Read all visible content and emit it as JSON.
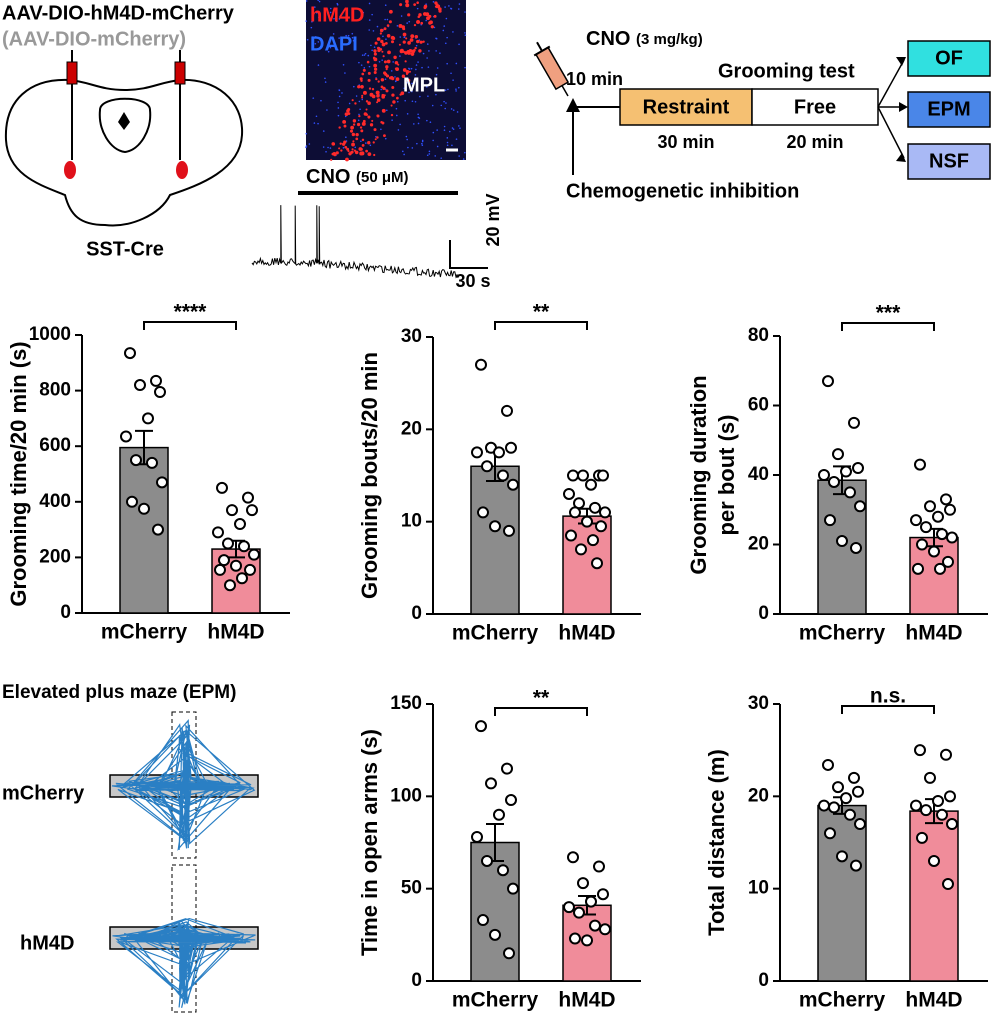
{
  "injection": {
    "virus": "AAV-DIO-hM4D-mCherry",
    "control": "(AAV-DIO-mCherry)",
    "mouse": "SST-Cre"
  },
  "image": {
    "stain1": "hM4D",
    "stain2": "DAPI",
    "region": "MPL"
  },
  "trace": {
    "drug": "CNO",
    "dose": "(50 μM)",
    "scale_y": "20 mV",
    "scale_x": "30 s"
  },
  "timeline": {
    "drug": "CNO",
    "dose": "(3 mg/kg)",
    "delay": "10 min",
    "test": "Grooming test",
    "phases": [
      {
        "label": "Restraint",
        "duration": "30 min"
      },
      {
        "label": "Free",
        "duration": "20 min"
      }
    ],
    "note": "Chemogenetic inhibition",
    "tests": [
      "OF",
      "EPM",
      "NSF"
    ]
  },
  "epm": {
    "title": "Elevated plus maze (EPM)",
    "groups": [
      "mCherry",
      "hM4D"
    ]
  },
  "chart_data": [
    {
      "type": "bar",
      "ylabel": [
        "Grooming time/20 min (s)"
      ],
      "categories": [
        "mCherry",
        "hM4D"
      ],
      "colors": [
        "#8c8c8c",
        "#f08c9a"
      ],
      "values": [
        595,
        230
      ],
      "errors": [
        60,
        30
      ],
      "ylim": [
        0,
        1000
      ],
      "yticks": [
        0,
        200,
        400,
        600,
        800,
        1000
      ],
      "significance": "****",
      "points": [
        [
          935,
          835,
          820,
          795,
          700,
          635,
          550,
          540,
          470,
          400,
          375,
          300
        ],
        [
          450,
          415,
          370,
          370,
          320,
          290,
          250,
          240,
          210,
          190,
          170,
          155,
          155,
          125,
          100
        ]
      ]
    },
    {
      "type": "bar",
      "ylabel": [
        "Grooming bouts/20 min"
      ],
      "categories": [
        "mCherry",
        "hM4D"
      ],
      "colors": [
        "#8c8c8c",
        "#f08c9a"
      ],
      "values": [
        16,
        10.6
      ],
      "errors": [
        1.6,
        0.8
      ],
      "ylim": [
        0,
        30
      ],
      "yticks": [
        0,
        10,
        20,
        30
      ],
      "significance": "**",
      "points": [
        [
          27,
          22,
          18,
          18,
          17.5,
          17.5,
          16,
          15,
          14,
          11,
          9.5,
          9
        ],
        [
          15,
          15,
          15,
          15,
          14,
          13,
          12,
          11.5,
          11,
          11,
          10,
          9.5,
          8.5,
          8,
          7,
          5.5
        ]
      ]
    },
    {
      "type": "bar",
      "ylabel": [
        "Grooming duration",
        "per bout (s)"
      ],
      "categories": [
        "mCherry",
        "hM4D"
      ],
      "colors": [
        "#8c8c8c",
        "#f08c9a"
      ],
      "values": [
        38.5,
        22
      ],
      "errors": [
        4,
        2.5
      ],
      "ylim": [
        0,
        80
      ],
      "yticks": [
        0,
        20,
        40,
        60,
        80
      ],
      "significance": "***",
      "points": [
        [
          67,
          55,
          46,
          42,
          41,
          40,
          38,
          35,
          31,
          27,
          21,
          19
        ],
        [
          43,
          33,
          31,
          30,
          28,
          27,
          25,
          23,
          22,
          20,
          18,
          15,
          13,
          13
        ]
      ]
    },
    {
      "type": "bar",
      "ylabel": [
        "Time in open arms (s)"
      ],
      "categories": [
        "mCherry",
        "hM4D"
      ],
      "colors": [
        "#8c8c8c",
        "#f08c9a"
      ],
      "values": [
        75,
        41
      ],
      "errors": [
        10,
        5
      ],
      "ylim": [
        0,
        150
      ],
      "yticks": [
        0,
        50,
        100,
        150
      ],
      "significance": "**",
      "points": [
        [
          138,
          115,
          107,
          98,
          90,
          78,
          65,
          60,
          50,
          33,
          25,
          15
        ],
        [
          67,
          62,
          53,
          47,
          43,
          40,
          37,
          30,
          28,
          23,
          22
        ]
      ]
    },
    {
      "type": "bar",
      "ylabel": [
        "Total distance (m)"
      ],
      "categories": [
        "mCherry",
        "hM4D"
      ],
      "colors": [
        "#8c8c8c",
        "#f08c9a"
      ],
      "values": [
        19,
        18.4
      ],
      "errors": [
        0.9,
        1.3
      ],
      "ylim": [
        0,
        30
      ],
      "yticks": [
        0,
        10,
        20,
        30
      ],
      "significance": "n.s.",
      "points": [
        [
          23.4,
          22,
          21,
          20.5,
          19.8,
          19,
          18.8,
          18,
          17,
          16,
          13.5,
          12.5
        ],
        [
          25,
          24.5,
          22,
          20,
          19.5,
          19,
          18.5,
          18,
          17,
          15.5,
          13,
          10.5
        ]
      ]
    }
  ]
}
